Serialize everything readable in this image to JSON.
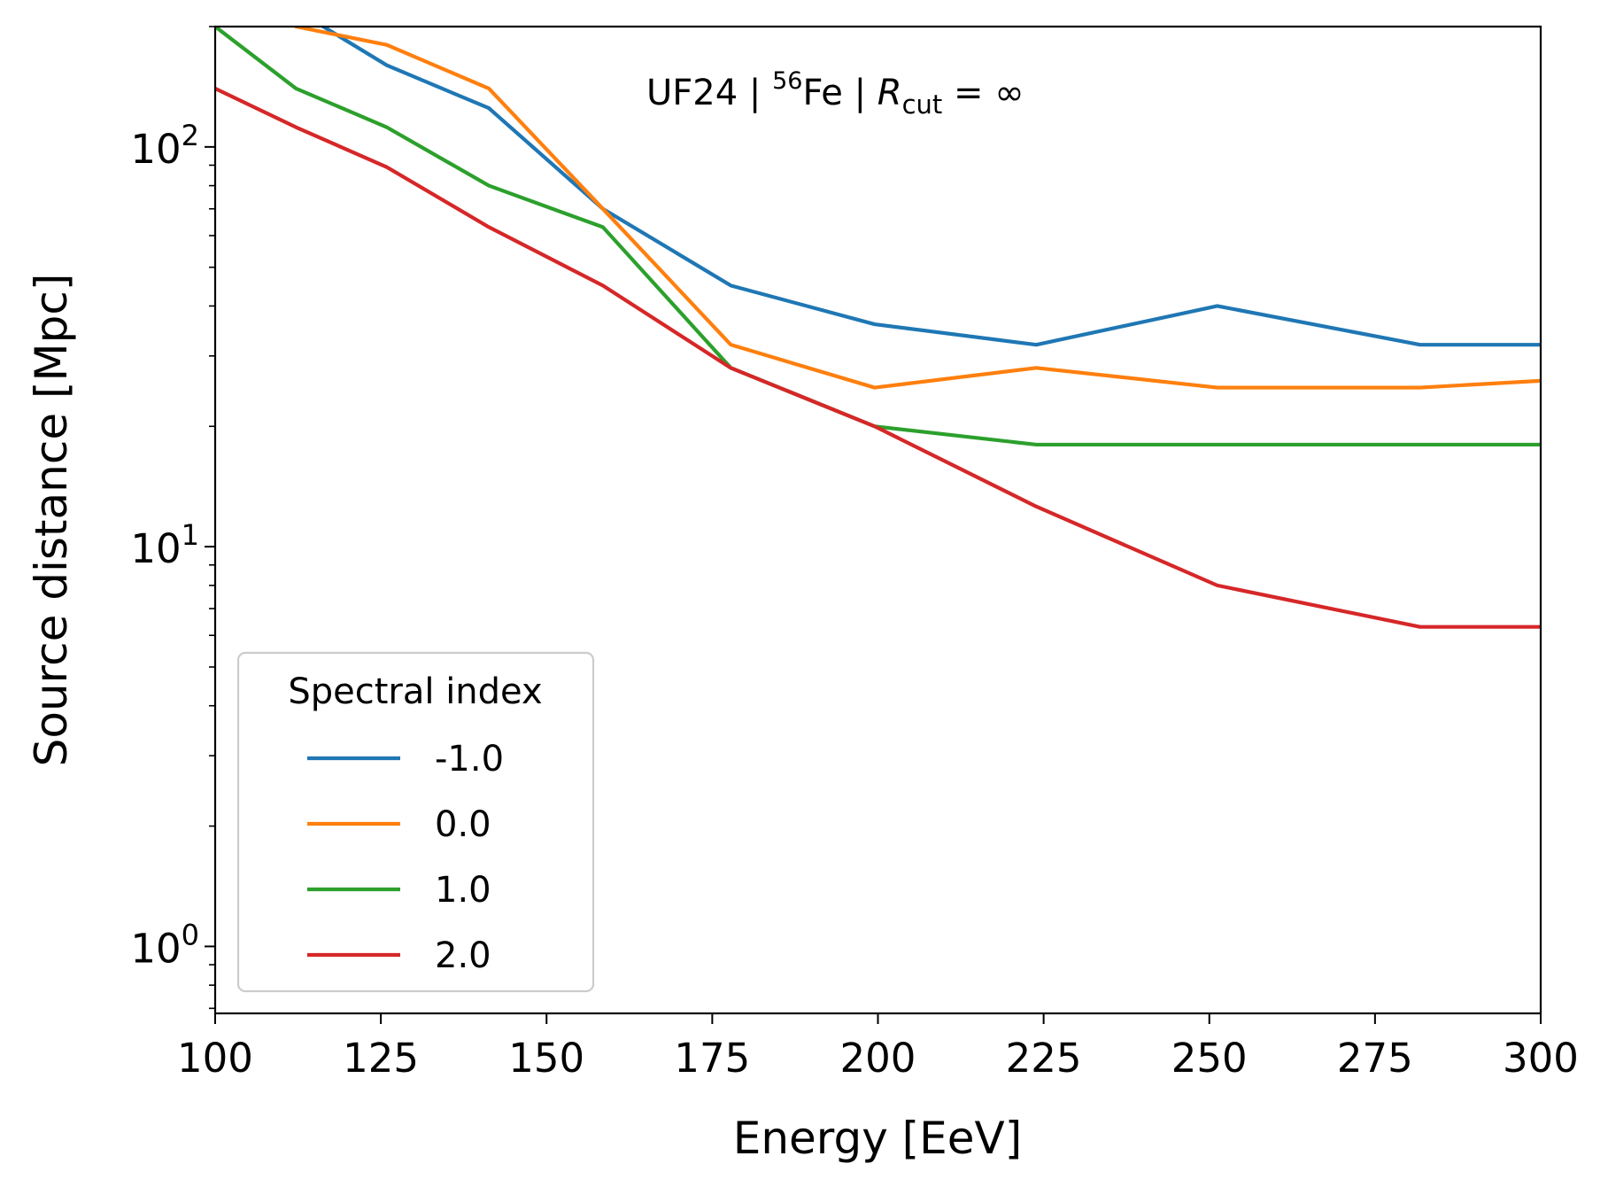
{
  "chart_data": {
    "type": "line",
    "title": {
      "prefix": "UF24 | ",
      "isotope_mass": "56",
      "element": "Fe",
      "separator": " | ",
      "var": "R",
      "var_sub": "cut",
      "equals": " = ∞"
    },
    "xlabel": "Energy [EeV]",
    "ylabel": "Source distance [Mpc]",
    "xlim": [
      100,
      300
    ],
    "ylim": [
      0.68,
      200
    ],
    "yscale": "log",
    "grid": false,
    "x_ticks": [
      100,
      125,
      150,
      175,
      200,
      225,
      250,
      275,
      300
    ],
    "x_tick_labels": [
      "100",
      "125",
      "150",
      "175",
      "200",
      "225",
      "250",
      "275",
      "300"
    ],
    "y_ticks": [
      {
        "value": 1,
        "base": "10",
        "exp": "0"
      },
      {
        "value": 10,
        "base": "10",
        "exp": "1"
      },
      {
        "value": 100,
        "base": "10",
        "exp": "2"
      }
    ],
    "x": [
      100,
      112.2,
      125.9,
      141.3,
      158.5,
      177.8,
      199.5,
      223.9,
      251.2,
      281.8,
      300
    ],
    "series": [
      {
        "name": "-1.0",
        "color": "#1f77b4",
        "values": [
          350,
          220,
          160,
          125,
          70,
          45,
          36,
          32,
          40,
          32,
          32
        ]
      },
      {
        "name": "0.0",
        "color": "#ff7f0e",
        "values": [
          300,
          200,
          180,
          140,
          70,
          32,
          25,
          28,
          25,
          25,
          26
        ]
      },
      {
        "name": "1.0",
        "color": "#2ca02c",
        "values": [
          200,
          140,
          112,
          80,
          63,
          28,
          20,
          18,
          18,
          18,
          18
        ]
      },
      {
        "name": "2.0",
        "color": "#d62728",
        "values": [
          140,
          112,
          89,
          63,
          45,
          28,
          20,
          12.6,
          8,
          6.3,
          6.3
        ]
      }
    ],
    "legend": {
      "title": "Spectral index",
      "placement": "lower-left"
    }
  }
}
